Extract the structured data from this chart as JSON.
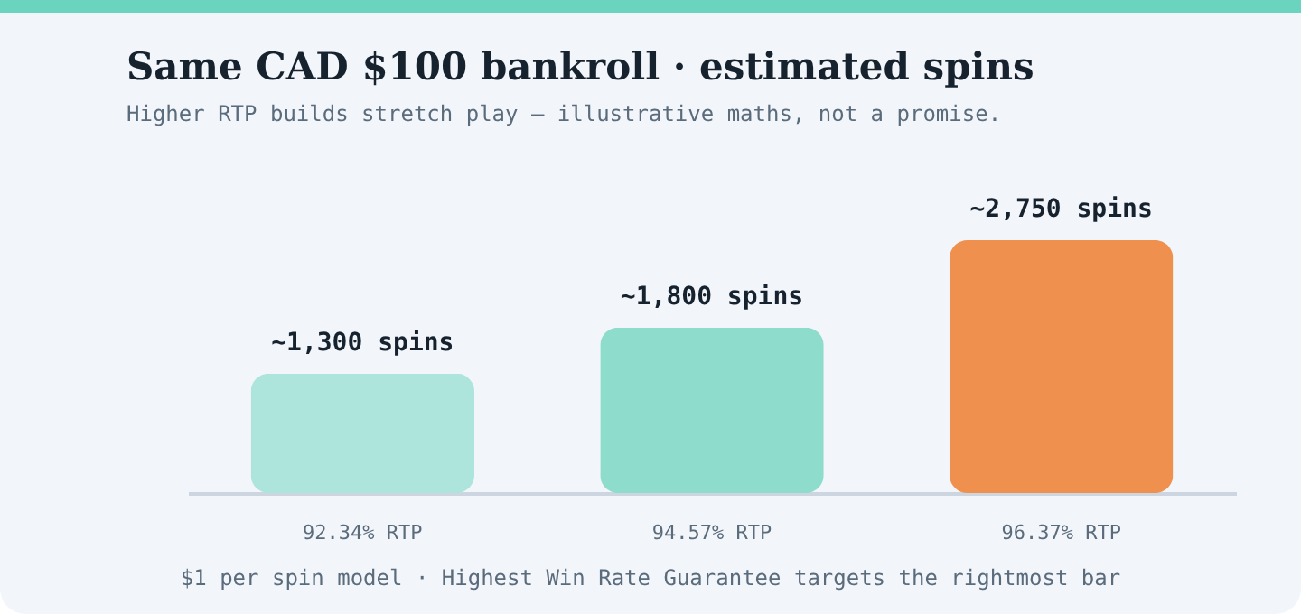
{
  "chart_data": {
    "type": "bar",
    "title": "Same CAD $100 bankroll · estimated spins",
    "subtitle": "Higher RTP builds stretch play — illustrative maths, not a promise.",
    "categories": [
      "92.34% RTP",
      "94.57% RTP",
      "96.37% RTP"
    ],
    "values": [
      1300,
      1800,
      2750
    ],
    "colors": [
      "#ade5dc",
      "#8edccb",
      "#f0904e"
    ],
    "value_labels": [
      "~1,300 spins",
      "~1,800 spins",
      "~2,750 spins"
    ],
    "grid": false,
    "annotations": [
      "$1 per spin model · Highest Win Rate Guarantee targets the rightmost bar"
    ]
  }
}
